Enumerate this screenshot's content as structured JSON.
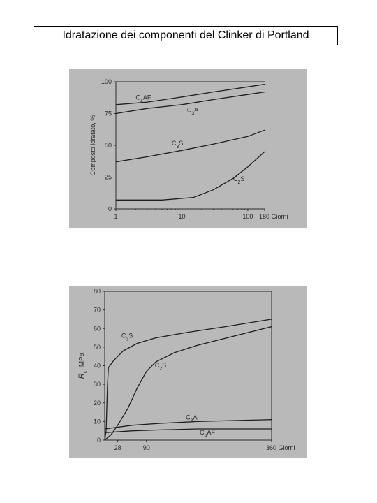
{
  "page": {
    "title": "Idratazione dei componenti del Clinker di Portland"
  },
  "colors": {
    "photo_bg": "#b9b9b9",
    "ink": "#1e1e1e"
  },
  "chart_data": [
    {
      "type": "line",
      "xscale": "log",
      "xlabel": "Giorni",
      "ylabel": "Composto idratato, %",
      "xlim": [
        1,
        180
      ],
      "ylim": [
        0,
        100
      ],
      "xticks": [
        1,
        10,
        100,
        180
      ],
      "xtick_labels": [
        "1",
        "10",
        "100",
        "180 Giorni"
      ],
      "yticks": [
        0,
        25,
        50,
        75,
        100
      ],
      "yticks_labels": [
        "0",
        "25",
        "50",
        "75",
        "100"
      ],
      "grid": false,
      "series": [
        {
          "name": "C4AF",
          "label_pos": [
            2,
            86
          ],
          "points": [
            [
              1,
              82
            ],
            [
              3,
              84
            ],
            [
              10,
              88
            ],
            [
              30,
              92
            ],
            [
              100,
              96
            ],
            [
              180,
              98
            ]
          ]
        },
        {
          "name": "C3A",
          "label_pos": [
            12,
            76
          ],
          "points": [
            [
              1,
              75
            ],
            [
              3,
              79
            ],
            [
              10,
              82
            ],
            [
              30,
              86
            ],
            [
              100,
              90
            ],
            [
              180,
              92
            ]
          ]
        },
        {
          "name": "C3S",
          "label_pos": [
            7,
            50
          ],
          "points": [
            [
              1,
              37
            ],
            [
              3,
              41
            ],
            [
              10,
              46
            ],
            [
              30,
              51
            ],
            [
              100,
              57
            ],
            [
              180,
              62
            ]
          ]
        },
        {
          "name": "C2S",
          "label_pos": [
            60,
            22
          ],
          "points": [
            [
              1,
              7
            ],
            [
              5,
              7
            ],
            [
              15,
              9
            ],
            [
              30,
              15
            ],
            [
              60,
              24
            ],
            [
              100,
              33
            ],
            [
              180,
              45
            ]
          ]
        }
      ]
    },
    {
      "type": "line",
      "xlabel": "Giorni",
      "ylabel": "Rc, MPa",
      "xlim": [
        0,
        360
      ],
      "ylim": [
        0,
        80
      ],
      "xticks": [
        28,
        90,
        360
      ],
      "xtick_labels": [
        "28",
        "90",
        "360 Giorni"
      ],
      "yticks": [
        0,
        10,
        20,
        30,
        40,
        50,
        60,
        70,
        80
      ],
      "yticks_labels": [
        "0",
        "10",
        "20",
        "30",
        "40",
        "50",
        "60",
        "70",
        "80"
      ],
      "grid": false,
      "series": [
        {
          "name": "C3S",
          "label_pos": [
            36,
            55
          ],
          "points": [
            [
              0,
              0
            ],
            [
              3,
              5
            ],
            [
              6,
              30
            ],
            [
              8,
              39
            ],
            [
              20,
              43
            ],
            [
              40,
              48
            ],
            [
              70,
              52
            ],
            [
              110,
              55
            ],
            [
              180,
              58
            ],
            [
              260,
              61
            ],
            [
              360,
              65
            ]
          ]
        },
        {
          "name": "C2S",
          "label_pos": [
            108,
            39
          ],
          "points": [
            [
              0,
              0
            ],
            [
              14,
              3
            ],
            [
              28,
              8
            ],
            [
              50,
              17
            ],
            [
              70,
              28
            ],
            [
              90,
              37
            ],
            [
              110,
              42
            ],
            [
              150,
              47
            ],
            [
              200,
              51
            ],
            [
              280,
              56
            ],
            [
              360,
              61
            ]
          ]
        },
        {
          "name": "C3A",
          "label_pos": [
            175,
            11
          ],
          "points": [
            [
              0,
              6
            ],
            [
              60,
              8
            ],
            [
              120,
              9
            ],
            [
              200,
              10
            ],
            [
              280,
              10.5
            ],
            [
              360,
              11
            ]
          ]
        },
        {
          "name": "C4AF",
          "label_pos": [
            205,
            3
          ],
          "points": [
            [
              0,
              4
            ],
            [
              60,
              5
            ],
            [
              120,
              5.5
            ],
            [
              200,
              6
            ],
            [
              280,
              6
            ],
            [
              360,
              6
            ]
          ]
        }
      ]
    }
  ]
}
